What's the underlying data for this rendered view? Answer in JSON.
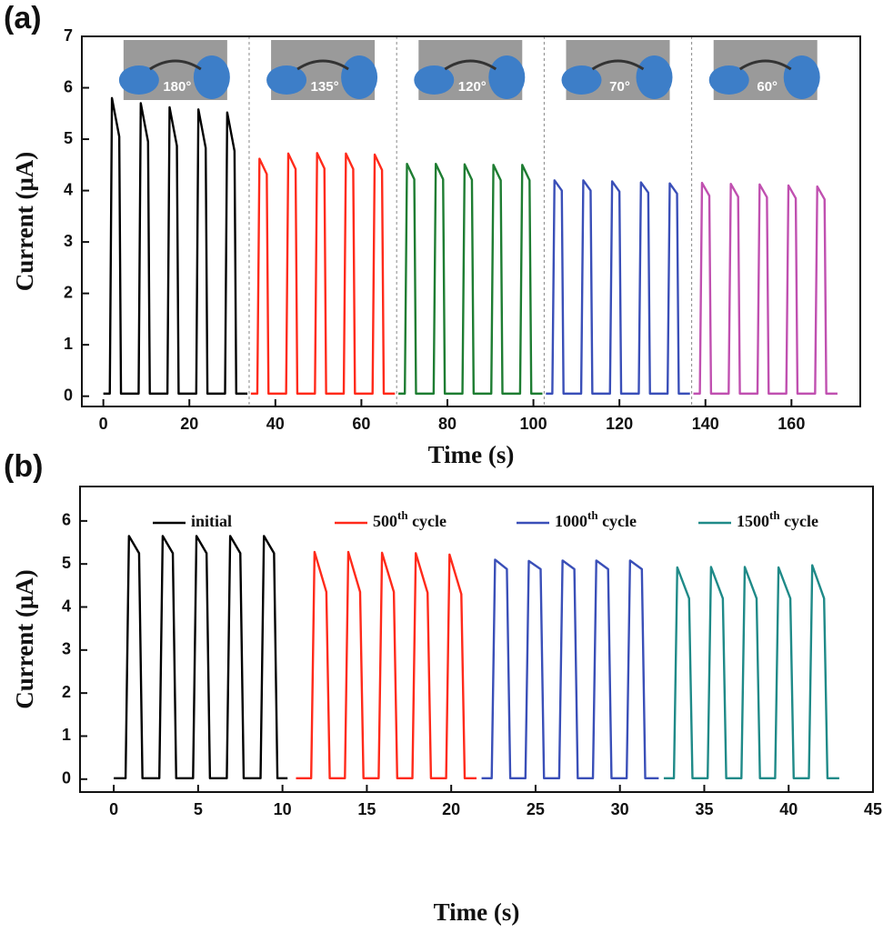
{
  "chart_data": [
    {
      "type": "line",
      "label": "(a)",
      "xlabel": "Time (s)",
      "ylabel": "Current (μA)",
      "xlim": [
        -5,
        176
      ],
      "ylim": [
        -0.2,
        7
      ],
      "xticks": [
        0,
        20,
        40,
        60,
        80,
        100,
        120,
        140,
        160
      ],
      "yticks": [
        0,
        1,
        2,
        3,
        4,
        5,
        6,
        7
      ],
      "insets": [
        "180°",
        "135°",
        "120°",
        "70°",
        "60°"
      ],
      "series": [
        {
          "color": "#000000",
          "x": [
            0,
            1.5,
            2,
            3.7,
            4.1,
            8.2,
            8.7,
            10.4,
            10.8,
            14.9,
            15.4,
            17.1,
            17.5,
            21.6,
            22.1,
            23.8,
            24.2,
            28.3,
            28.8,
            30.5,
            30.9,
            33.5
          ],
          "values": [
            0.05,
            0.05,
            5.8,
            5.05,
            0.05,
            0.05,
            5.7,
            4.95,
            0.05,
            0.05,
            5.62,
            4.87,
            0.05,
            0.05,
            5.58,
            4.83,
            0.05,
            0.05,
            5.52,
            4.77,
            0.05,
            0.05
          ]
        },
        {
          "color": "#ff2a1a",
          "x": [
            34.3,
            35.8,
            36.3,
            38,
            38.4,
            42.5,
            43,
            44.7,
            45.1,
            49.2,
            49.7,
            51.4,
            51.8,
            55.9,
            56.4,
            58.1,
            58.5,
            62.6,
            63.1,
            64.8,
            65.2,
            67.8
          ],
          "values": [
            0.05,
            0.05,
            4.62,
            4.32,
            0.05,
            0.05,
            4.72,
            4.42,
            0.05,
            0.05,
            4.73,
            4.43,
            0.05,
            0.05,
            4.72,
            4.42,
            0.05,
            0.05,
            4.7,
            4.4,
            0.05,
            0.05
          ]
        },
        {
          "color": "#1e7d32",
          "x": [
            68.6,
            70.1,
            70.6,
            72.3,
            72.7,
            76.8,
            77.3,
            79,
            79.4,
            83.5,
            84,
            85.7,
            86.1,
            90.2,
            90.7,
            92.4,
            92.8,
            96.9,
            97.4,
            99.1,
            99.5,
            102.1
          ],
          "values": [
            0.05,
            0.05,
            4.52,
            4.22,
            0.05,
            0.05,
            4.52,
            4.22,
            0.05,
            0.05,
            4.51,
            4.21,
            0.05,
            0.05,
            4.5,
            4.2,
            0.05,
            0.05,
            4.5,
            4.2,
            0.05,
            0.05
          ]
        },
        {
          "color": "#3a4fb8",
          "x": [
            102.9,
            104.4,
            104.9,
            106.6,
            107,
            111.1,
            111.6,
            113.3,
            113.7,
            117.8,
            118.3,
            120,
            120.4,
            124.5,
            125,
            126.7,
            127.1,
            131.2,
            131.7,
            133.4,
            133.8,
            136.4
          ],
          "values": [
            0.05,
            0.05,
            4.2,
            4.0,
            0.05,
            0.05,
            4.2,
            4.0,
            0.05,
            0.05,
            4.18,
            3.98,
            0.05,
            0.05,
            4.16,
            3.96,
            0.05,
            0.05,
            4.14,
            3.94,
            0.05,
            0.05
          ]
        },
        {
          "color": "#c050b0",
          "x": [
            137.2,
            138.7,
            139.2,
            140.9,
            141.3,
            145.4,
            145.9,
            147.6,
            148,
            152.1,
            152.6,
            154.3,
            154.7,
            158.8,
            159.3,
            161,
            161.4,
            165.5,
            166,
            167.7,
            168.1,
            170.7
          ],
          "values": [
            0.05,
            0.05,
            4.15,
            3.9,
            0.05,
            0.05,
            4.13,
            3.88,
            0.05,
            0.05,
            4.12,
            3.87,
            0.05,
            0.05,
            4.1,
            3.85,
            0.05,
            0.05,
            4.08,
            3.83,
            0.05,
            0.05
          ]
        }
      ]
    },
    {
      "type": "line",
      "label": "(b)",
      "xlabel": "Time (s)",
      "ylabel": "Current (μA)",
      "xlim": [
        -2,
        45
      ],
      "ylim": [
        -0.3,
        6.8
      ],
      "xticks": [
        0,
        5,
        10,
        15,
        20,
        25,
        30,
        35,
        40,
        45
      ],
      "yticks": [
        0,
        1,
        2,
        3,
        4,
        5,
        6
      ],
      "legend": "top",
      "series": [
        {
          "name": "initial",
          "color": "#000000",
          "x": [
            0,
            0.7,
            0.9,
            1.5,
            1.7,
            2.7,
            2.9,
            3.5,
            3.7,
            4.7,
            4.9,
            5.5,
            5.7,
            6.7,
            6.9,
            7.5,
            7.7,
            8.7,
            8.9,
            9.5,
            9.7,
            10.3
          ],
          "values": [
            0.02,
            0.02,
            5.65,
            5.25,
            0.02,
            0.02,
            5.65,
            5.25,
            0.02,
            0.02,
            5.65,
            5.25,
            0.02,
            0.02,
            5.65,
            5.25,
            0.02,
            0.02,
            5.65,
            5.25,
            0.02,
            0.02
          ]
        },
        {
          "name": "500th cycle",
          "color": "#ff2a1a",
          "x": [
            10.8,
            11.7,
            11.9,
            12.6,
            12.8,
            13.7,
            13.9,
            14.6,
            14.8,
            15.7,
            15.9,
            16.6,
            16.8,
            17.7,
            17.9,
            18.6,
            18.8,
            19.7,
            19.9,
            20.6,
            20.8,
            21.5
          ],
          "values": [
            0.02,
            0.02,
            5.28,
            4.35,
            0.02,
            0.02,
            5.28,
            4.35,
            0.02,
            0.02,
            5.26,
            4.35,
            0.02,
            0.02,
            5.25,
            4.33,
            0.02,
            0.02,
            5.22,
            4.3,
            0.02,
            0.02
          ]
        },
        {
          "name": "1000th cycle",
          "color": "#3a4fb8",
          "x": [
            21.8,
            22.4,
            22.6,
            23.3,
            23.5,
            24.4,
            24.6,
            25.3,
            25.5,
            26.4,
            26.6,
            27.3,
            27.5,
            28.4,
            28.6,
            29.3,
            29.5,
            30.4,
            30.6,
            31.3,
            31.5,
            32.3
          ],
          "values": [
            0.02,
            0.02,
            5.1,
            4.88,
            0.02,
            0.02,
            5.07,
            4.88,
            0.02,
            0.02,
            5.08,
            4.88,
            0.02,
            0.02,
            5.08,
            4.88,
            0.02,
            0.02,
            5.08,
            4.88,
            0.02,
            0.02
          ]
        },
        {
          "name": "1500th cycle",
          "color": "#1f8a88",
          "x": [
            32.6,
            33.2,
            33.4,
            34.1,
            34.3,
            35.2,
            35.4,
            36.1,
            36.3,
            37.2,
            37.4,
            38.1,
            38.3,
            39.2,
            39.4,
            40.1,
            40.3,
            41.2,
            41.4,
            42.1,
            42.3,
            43
          ],
          "values": [
            0.02,
            0.02,
            4.92,
            4.2,
            0.02,
            0.02,
            4.93,
            4.2,
            0.02,
            0.02,
            4.93,
            4.2,
            0.02,
            0.02,
            4.92,
            4.2,
            0.02,
            0.02,
            4.97,
            4.2,
            0.02,
            0.02
          ]
        }
      ]
    }
  ]
}
